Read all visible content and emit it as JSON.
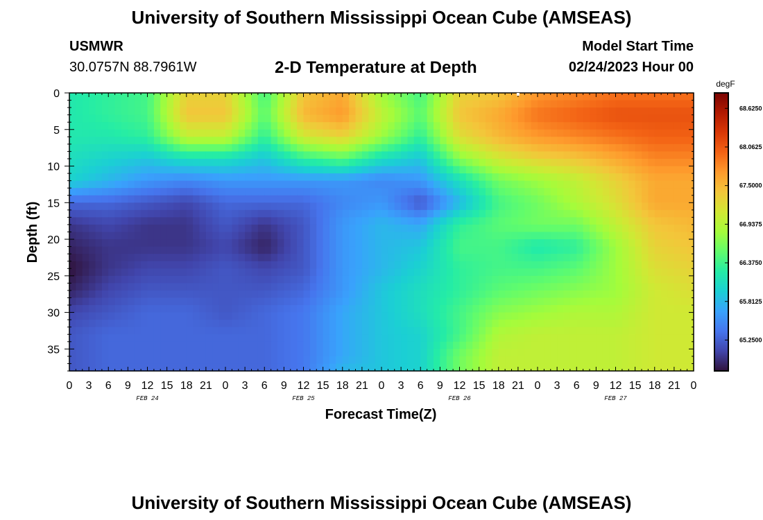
{
  "header": {
    "title": "University of Southern Mississippi Ocean Cube (AMSEAS)",
    "station": "USMWR",
    "coords": "30.0757N  88.7961W",
    "subtitle": "2-D Temperature at Depth",
    "model_start_label": "Model Start Time",
    "model_start_value": "02/24/2023 Hour 00"
  },
  "footer": {
    "title": "University of Southern Mississippi Ocean Cube (AMSEAS)"
  },
  "chart_data": {
    "type": "heatmap",
    "title": "2-D Temperature at Depth",
    "xlabel": "Forecast Time(Z)",
    "ylabel": "Depth (ft)",
    "x_tick_labels": [
      "0",
      "3",
      "6",
      "9",
      "12",
      "15",
      "18",
      "21",
      "0",
      "3",
      "6",
      "9",
      "12",
      "15",
      "18",
      "21",
      "0",
      "3",
      "6",
      "9",
      "12",
      "15",
      "18",
      "21",
      "0",
      "3",
      "6",
      "9",
      "12",
      "15",
      "18",
      "21",
      "0"
    ],
    "x_date_labels": [
      "FEB 24",
      "FEB 25",
      "FEB 26",
      "FEB 27"
    ],
    "x_range_hours": [
      0,
      96
    ],
    "y_ticks": [
      0,
      5,
      10,
      15,
      20,
      25,
      30,
      35
    ],
    "y_range_ft": [
      0,
      38
    ],
    "colorbar": {
      "unit": "degF",
      "labels": [
        "68.6250",
        "68.0625",
        "67.5000",
        "66.9375",
        "66.3750",
        "65.8125",
        "65.2500"
      ],
      "range": [
        64.8,
        68.85
      ],
      "colors": [
        "#30123b",
        "#4145ab",
        "#4675ed",
        "#39a2fc",
        "#1bcfd4",
        "#24eca6",
        "#61fc6c",
        "#a4fc3b",
        "#d1e834",
        "#f3c63a",
        "#fe9b2d",
        "#f36315",
        "#d93806",
        "#b11901",
        "#7a0402"
      ]
    },
    "depths_ft": [
      0,
      3,
      6,
      9,
      12,
      15,
      18,
      21,
      24,
      27,
      30,
      33,
      36,
      38
    ],
    "times_hours": [
      0,
      6,
      12,
      18,
      24,
      30,
      36,
      42,
      48,
      54,
      60,
      66,
      72,
      78,
      84,
      90,
      96
    ],
    "values_degF": [
      [
        66.2,
        66.3,
        66.4,
        67.3,
        67.3,
        66.4,
        67.4,
        67.6,
        66.8,
        66.4,
        67.3,
        67.4,
        67.7,
        67.8,
        67.9,
        67.9,
        67.9
      ],
      [
        66.2,
        66.3,
        66.4,
        67.4,
        67.4,
        66.5,
        67.5,
        67.7,
        67.0,
        66.5,
        67.4,
        67.6,
        67.9,
        68.0,
        68.1,
        68.1,
        68.1
      ],
      [
        66.2,
        66.2,
        66.3,
        67.0,
        67.0,
        66.3,
        67.1,
        67.3,
        66.8,
        66.3,
        67.2,
        67.5,
        67.7,
        67.8,
        67.9,
        68.0,
        68.0
      ],
      [
        66.1,
        66.0,
        65.9,
        66.1,
        66.1,
        65.9,
        66.3,
        66.5,
        66.1,
        65.9,
        66.7,
        67.1,
        67.3,
        67.4,
        67.6,
        67.8,
        67.8
      ],
      [
        66.0,
        65.8,
        65.6,
        65.5,
        65.6,
        65.6,
        65.6,
        65.6,
        65.5,
        65.6,
        66.1,
        66.6,
        66.8,
        67.0,
        67.3,
        67.6,
        67.6
      ],
      [
        65.3,
        65.3,
        65.2,
        65.1,
        65.3,
        65.3,
        65.3,
        65.5,
        65.6,
        65.2,
        65.8,
        66.4,
        66.6,
        66.9,
        67.2,
        67.6,
        67.6
      ],
      [
        65.0,
        65.1,
        65.0,
        65.0,
        65.2,
        65.0,
        65.2,
        65.6,
        65.8,
        65.7,
        66.3,
        66.5,
        66.6,
        66.6,
        67.0,
        67.4,
        67.5
      ],
      [
        64.9,
        65.0,
        65.0,
        65.0,
        65.1,
        64.9,
        65.2,
        65.6,
        65.8,
        65.9,
        66.4,
        66.4,
        66.2,
        66.3,
        66.8,
        67.3,
        67.4
      ],
      [
        64.8,
        65.0,
        65.1,
        65.1,
        65.2,
        65.1,
        65.2,
        65.6,
        65.8,
        66.0,
        66.3,
        66.4,
        66.4,
        66.5,
        66.8,
        67.2,
        67.3
      ],
      [
        64.9,
        65.1,
        65.2,
        65.2,
        65.2,
        65.2,
        65.3,
        65.6,
        65.9,
        66.1,
        66.3,
        66.5,
        66.6,
        66.7,
        66.8,
        67.1,
        67.2
      ],
      [
        65.1,
        65.2,
        65.3,
        65.3,
        65.2,
        65.3,
        65.4,
        65.7,
        65.9,
        66.1,
        66.4,
        66.7,
        66.8,
        66.9,
        66.9,
        67.1,
        67.1
      ],
      [
        65.2,
        65.3,
        65.3,
        65.3,
        65.3,
        65.3,
        65.4,
        65.7,
        65.9,
        66.0,
        66.4,
        66.9,
        67.0,
        67.0,
        67.0,
        67.1,
        67.1
      ],
      [
        65.2,
        65.3,
        65.3,
        65.3,
        65.3,
        65.3,
        65.4,
        65.7,
        65.9,
        66.0,
        66.6,
        67.0,
        67.0,
        67.0,
        67.0,
        67.1,
        67.1
      ],
      [
        65.2,
        65.3,
        65.3,
        65.3,
        65.3,
        65.3,
        65.4,
        65.8,
        65.9,
        66.0,
        66.6,
        67.0,
        67.0,
        67.0,
        67.0,
        67.1,
        67.1
      ]
    ]
  }
}
